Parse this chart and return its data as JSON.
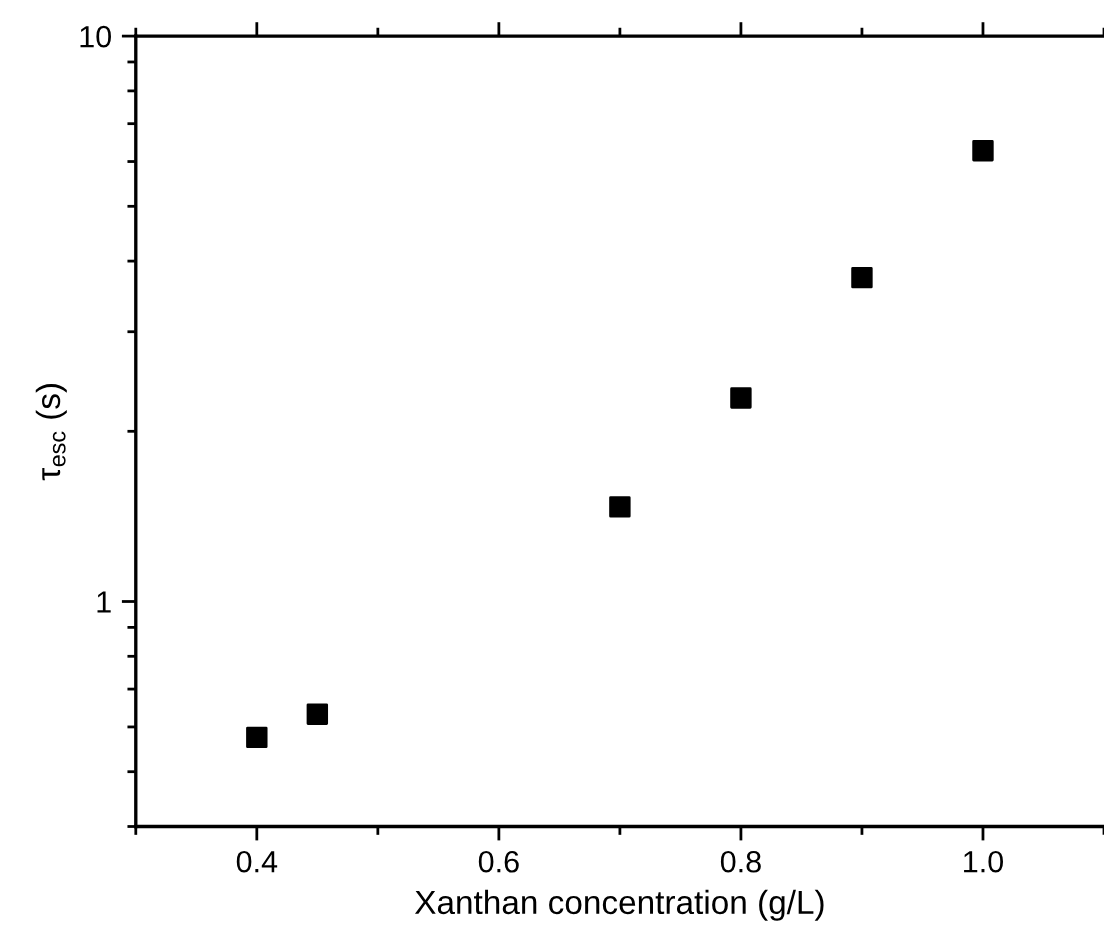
{
  "chart_data": {
    "type": "scatter",
    "xlabel": "Xanthan concentration (g/L)",
    "ylabel": "τ$_{esc}$ (s)",
    "x": [
      0.4,
      0.45,
      0.7,
      0.8,
      0.9,
      1.0
    ],
    "series": [
      {
        "color": "#000000",
        "values": [
          0.575,
          0.632,
          1.47,
          2.29,
          3.74,
          6.27
        ]
      }
    ],
    "marker": "square",
    "log": "y",
    "grid": false,
    "xlim": [
      0.3,
      1.1
    ],
    "ylim": [
      0.4,
      10
    ],
    "xticks": [
      {
        "value": 0.3,
        "label": null
      },
      {
        "value": 0.4,
        "label": "0.4"
      },
      {
        "value": 0.5,
        "label": null
      },
      {
        "value": 0.6,
        "label": "0.6"
      },
      {
        "value": 0.7,
        "label": null
      },
      {
        "value": 0.8,
        "label": "0.8"
      },
      {
        "value": 0.9,
        "label": null
      },
      {
        "value": 1.0,
        "label": "1.0"
      },
      {
        "value": 1.1,
        "label": null
      }
    ],
    "yticks": [
      {
        "value": 0.4,
        "label": null
      },
      {
        "value": 0.5,
        "label": null
      },
      {
        "value": 0.6,
        "label": null
      },
      {
        "value": 0.7,
        "label": null
      },
      {
        "value": 0.8,
        "label": null
      },
      {
        "value": 0.9,
        "label": null
      },
      1,
      {
        "value": 2,
        "label": null
      },
      {
        "value": 3,
        "label": null
      },
      {
        "value": 4,
        "label": null
      },
      {
        "value": 5,
        "label": null
      },
      {
        "value": 6,
        "label": null
      },
      {
        "value": 7,
        "label": null
      },
      {
        "value": 8,
        "label": null
      },
      {
        "value": 9,
        "label": null
      },
      10
    ]
  }
}
